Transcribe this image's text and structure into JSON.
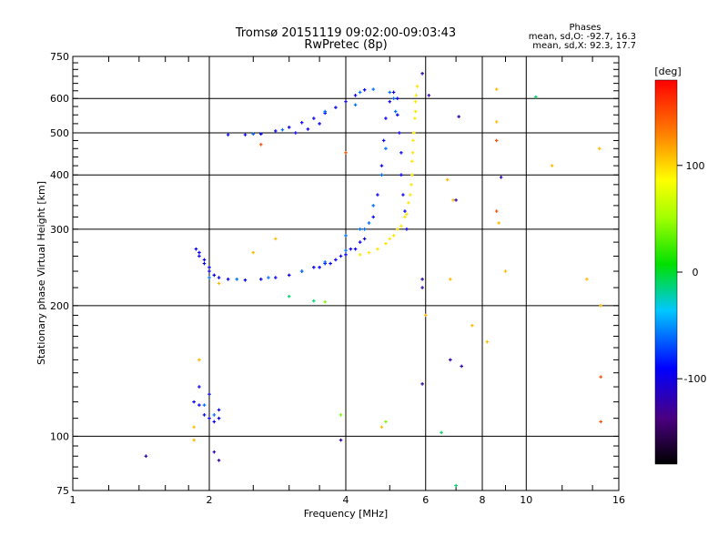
{
  "chart_data": {
    "type": "scatter",
    "title": "Tromsø 20151119 09:02:00-09:03:43",
    "subtitle": "RwPretec (8p)",
    "xlabel": "Frequency [MHz]",
    "ylabel": "Stationary phase Virtual Height [km]",
    "x_scale": "log",
    "y_scale": "log",
    "xlim": [
      1,
      16
    ],
    "ylim": [
      75,
      750
    ],
    "x_ticks": [
      1,
      2,
      4,
      6,
      8,
      10,
      16
    ],
    "x_tick_labels": [
      "1",
      "2",
      "4",
      "6",
      "8",
      "10",
      "16"
    ],
    "y_ticks": [
      75,
      100,
      200,
      300,
      400,
      500,
      600,
      750
    ],
    "y_tick_labels": [
      "75",
      "100",
      "200",
      "300",
      "400",
      "500",
      "600",
      "750"
    ],
    "grid": true,
    "phases_box": {
      "heading": "Phases",
      "line_o": "mean, sd,O: -92.7, 16.3",
      "line_x": "mean, sd,X: 92.3, 17.7"
    },
    "colorbar": {
      "label": "[deg]",
      "range": [
        -180,
        180
      ],
      "tick_values": [
        100,
        0,
        -100
      ],
      "tick_labels": [
        "100",
        "0",
        "-100"
      ]
    },
    "series": [
      {
        "comment_phase": -95,
        "points": [
          [
            1.87,
            270
          ],
          [
            1.9,
            260
          ],
          [
            1.95,
            250
          ],
          [
            2.0,
            240
          ],
          [
            2.05,
            235
          ],
          [
            2.1,
            232
          ],
          [
            2.2,
            230
          ],
          [
            2.4,
            229
          ],
          [
            2.6,
            230
          ],
          [
            2.8,
            232
          ],
          [
            3.0,
            235
          ],
          [
            3.2,
            240
          ],
          [
            3.4,
            245
          ],
          [
            3.6,
            250
          ],
          [
            3.8,
            255
          ],
          [
            4.0,
            262
          ],
          [
            4.2,
            270
          ],
          [
            4.4,
            285
          ],
          [
            4.6,
            320
          ],
          [
            4.7,
            360
          ],
          [
            4.8,
            420
          ],
          [
            4.85,
            480
          ],
          [
            4.9,
            540
          ],
          [
            5.0,
            590
          ],
          [
            5.1,
            620
          ],
          [
            2.2,
            495
          ],
          [
            2.4,
            495
          ],
          [
            2.6,
            497
          ],
          [
            2.8,
            505
          ],
          [
            3.0,
            515
          ],
          [
            3.2,
            528
          ],
          [
            3.4,
            540
          ],
          [
            3.6,
            555
          ],
          [
            3.8,
            572
          ],
          [
            4.0,
            590
          ],
          [
            4.2,
            610
          ],
          [
            4.4,
            628
          ],
          [
            3.1,
            500
          ],
          [
            3.3,
            510
          ],
          [
            3.5,
            525
          ],
          [
            5.2,
            600
          ],
          [
            5.2,
            550
          ],
          [
            5.25,
            500
          ],
          [
            5.3,
            450
          ],
          [
            5.3,
            400
          ],
          [
            5.35,
            360
          ],
          [
            5.4,
            330
          ],
          [
            5.45,
            300
          ],
          [
            1.85,
            120
          ],
          [
            1.9,
            118
          ],
          [
            1.95,
            112
          ],
          [
            2.0,
            110
          ],
          [
            2.05,
            108
          ],
          [
            2.1,
            110
          ],
          [
            1.9,
            130
          ],
          [
            2.0,
            125
          ],
          [
            2.1,
            115
          ],
          [
            3.5,
            245
          ],
          [
            3.7,
            250
          ],
          [
            3.9,
            260
          ],
          [
            4.1,
            270
          ],
          [
            4.3,
            280
          ],
          [
            1.9,
            265
          ],
          [
            1.95,
            255
          ],
          [
            2.0,
            245
          ]
        ]
      },
      {
        "comment_phase": -60,
        "points": [
          [
            2.0,
            232
          ],
          [
            2.3,
            230
          ],
          [
            2.7,
            232
          ],
          [
            3.2,
            240
          ],
          [
            3.6,
            252
          ],
          [
            4.0,
            268
          ],
          [
            4.4,
            300
          ],
          [
            4.6,
            340
          ],
          [
            4.8,
            400
          ],
          [
            4.9,
            460
          ],
          [
            2.5,
            497
          ],
          [
            2.9,
            508
          ],
          [
            3.6,
            560
          ],
          [
            4.3,
            620
          ],
          [
            5.0,
            620
          ],
          [
            5.1,
            600
          ],
          [
            5.15,
            560
          ],
          [
            2.05,
            112
          ],
          [
            1.95,
            118
          ],
          [
            4.0,
            290
          ],
          [
            4.3,
            300
          ],
          [
            4.5,
            310
          ],
          [
            4.2,
            580
          ],
          [
            4.6,
            630
          ]
        ]
      },
      {
        "comment_phase": 95,
        "points": [
          [
            4.3,
            262
          ],
          [
            4.5,
            265
          ],
          [
            4.7,
            270
          ],
          [
            4.9,
            278
          ],
          [
            5.1,
            290
          ],
          [
            5.3,
            305
          ],
          [
            5.45,
            325
          ],
          [
            5.55,
            360
          ],
          [
            5.6,
            400
          ],
          [
            5.62,
            450
          ],
          [
            5.65,
            500
          ],
          [
            5.7,
            560
          ],
          [
            5.72,
            610
          ],
          [
            5.75,
            640
          ],
          [
            5.0,
            285
          ],
          [
            5.2,
            300
          ],
          [
            5.4,
            320
          ],
          [
            5.5,
            345
          ],
          [
            5.58,
            380
          ],
          [
            5.6,
            430
          ],
          [
            5.63,
            480
          ],
          [
            5.68,
            540
          ],
          [
            5.7,
            590
          ]
        ]
      },
      {
        "comment_phase": 110,
        "points": [
          [
            6.7,
            390
          ],
          [
            6.9,
            350
          ],
          [
            7.6,
            180
          ],
          [
            8.2,
            165
          ],
          [
            8.6,
            630
          ],
          [
            8.6,
            530
          ],
          [
            8.7,
            310
          ],
          [
            9.0,
            240
          ],
          [
            11.4,
            420
          ],
          [
            14.5,
            460
          ],
          [
            13.6,
            230
          ],
          [
            14.6,
            200
          ],
          [
            1.85,
            105
          ],
          [
            1.85,
            98
          ],
          [
            1.9,
            150
          ],
          [
            4.8,
            105
          ],
          [
            6.8,
            230
          ],
          [
            6.0,
            190
          ],
          [
            2.1,
            225
          ],
          [
            2.5,
            265
          ],
          [
            2.8,
            285
          ]
        ]
      },
      {
        "comment_phase": 150,
        "points": [
          [
            8.6,
            480
          ],
          [
            14.6,
            108
          ],
          [
            14.6,
            137
          ],
          [
            4.0,
            450
          ],
          [
            8.6,
            330
          ],
          [
            2.6,
            470
          ]
        ]
      },
      {
        "comment_phase": -120,
        "points": [
          [
            1.45,
            90
          ],
          [
            2.1,
            88
          ],
          [
            2.05,
            92
          ],
          [
            3.9,
            98
          ],
          [
            5.9,
            132
          ],
          [
            6.8,
            150
          ],
          [
            7.2,
            145
          ],
          [
            8.8,
            395
          ],
          [
            6.1,
            610
          ],
          [
            5.9,
            685
          ],
          [
            7.1,
            545
          ],
          [
            7.0,
            350
          ],
          [
            5.9,
            230
          ],
          [
            5.9,
            220
          ]
        ]
      },
      {
        "comment_phase": -10,
        "points": [
          [
            6.5,
            102
          ],
          [
            7.0,
            77
          ],
          [
            10.5,
            605
          ],
          [
            3.4,
            205
          ],
          [
            3.0,
            210
          ]
        ]
      },
      {
        "comment_phase": 40,
        "points": [
          [
            4.9,
            108
          ],
          [
            3.9,
            112
          ],
          [
            3.6,
            204
          ]
        ]
      }
    ]
  }
}
